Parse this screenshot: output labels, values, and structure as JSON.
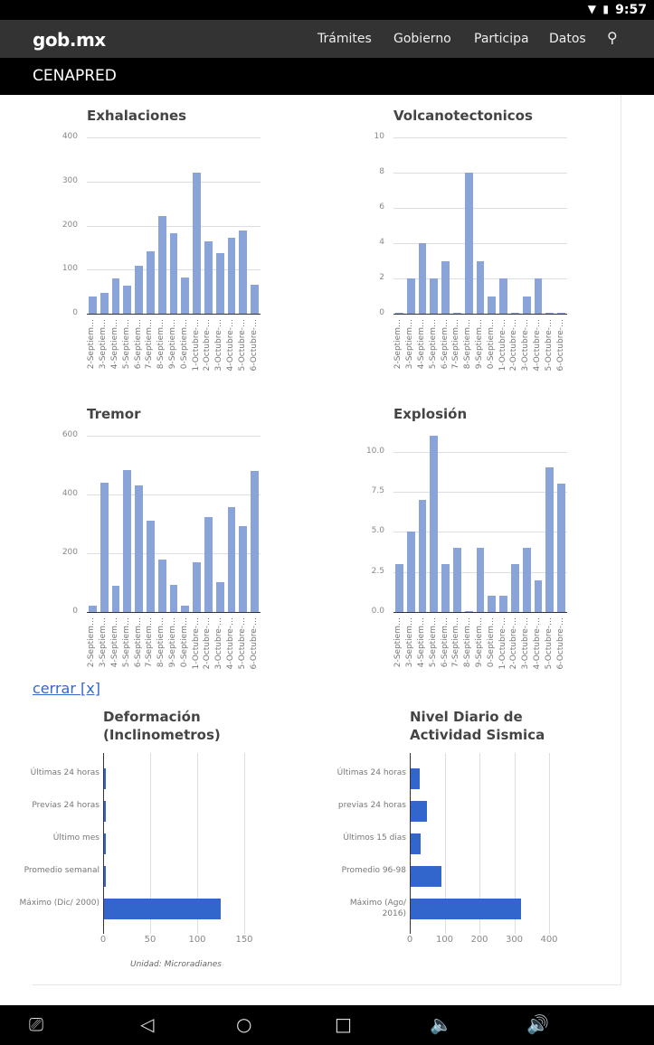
{
  "status_bar": {
    "time": "9:57"
  },
  "header": {
    "logo": "gob.mx",
    "nav": [
      "Trámites",
      "Gobierno",
      "Participa",
      "Datos"
    ],
    "site": "CENAPRED"
  },
  "close_link": "cerrar [x]",
  "colors": {
    "bar": "#8aa3d8",
    "hbar": "#3366cc"
  },
  "chart_data": [
    {
      "type": "bar",
      "title": "Exhalaciones",
      "ylim": [
        0,
        400
      ],
      "yticks": [
        "0",
        "100",
        "200",
        "300",
        "400"
      ],
      "categories": [
        "2-Septiem…",
        "3-Septiem…",
        "4-Septiem…",
        "5-Septiem…",
        "6-Septiem…",
        "7-Septiem…",
        "8-Septiem…",
        "9-Septiem…",
        "0-Septiem…",
        "1-Octubre-…",
        "2-Octubre-…",
        "3-Octubre-…",
        "4-Octubre-…",
        "5-Octubre-…",
        "6-Octubre-…"
      ],
      "values": [
        38,
        48,
        81,
        63,
        108,
        141,
        221,
        182,
        83,
        321,
        164,
        137,
        173,
        188,
        66
      ]
    },
    {
      "type": "bar",
      "title": "Volcanotectonicos",
      "ylim": [
        0,
        10
      ],
      "yticks": [
        "0",
        "2",
        "4",
        "6",
        "8",
        "10"
      ],
      "categories": [
        "2-Septiem…",
        "3-Septiem…",
        "4-Septiem…",
        "5-Septiem…",
        "6-Septiem…",
        "7-Septiem…",
        "8-Septiem…",
        "9-Septiem…",
        "0-Septiem…",
        "1-Octubre-…",
        "2-Octubre-…",
        "3-Octubre-…",
        "4-Octubre-…",
        "5-Octubre-…",
        "6-Octubre-…"
      ],
      "values": [
        0,
        2,
        4,
        2,
        3,
        0,
        8,
        3,
        1,
        2,
        0,
        1,
        2,
        0,
        0
      ]
    },
    {
      "type": "bar",
      "title": "Tremor",
      "ylim": [
        0,
        600
      ],
      "yticks": [
        "0",
        "200",
        "400",
        "600"
      ],
      "categories": [
        "2-Septiem…",
        "3-Septiem…",
        "4-Septiem…",
        "5-Septiem…",
        "6-Septiem…",
        "7-Septiem…",
        "8-Septiem…",
        "9-Septiem…",
        "0-Septiem…",
        "1-Octubre-…",
        "2-Octubre-…",
        "3-Octubre-…",
        "4-Octubre-…",
        "5-Octubre-…",
        "6-Octubre-…"
      ],
      "values": [
        22,
        440,
        88,
        482,
        430,
        310,
        178,
        92,
        22,
        170,
        322,
        102,
        358,
        292,
        480
      ]
    },
    {
      "type": "bar",
      "title": "Explosión",
      "ylim": [
        0,
        11
      ],
      "yticks": [
        "0.0",
        "2.5",
        "5.0",
        "7.5",
        "10.0"
      ],
      "categories": [
        "2-Septiem…",
        "3-Septiem…",
        "4-Septiem…",
        "5-Septiem…",
        "6-Septiem…",
        "7-Septiem…",
        "8-Septiem…",
        "9-Septiem…",
        "0-Septiem…",
        "1-Octubre-…",
        "2-Octubre-…",
        "3-Octubre-…",
        "4-Octubre-…",
        "5-Octubre-…",
        "6-Octubre-…"
      ],
      "values": [
        3,
        5,
        7,
        11,
        3,
        4,
        0,
        4,
        1,
        1,
        3,
        4,
        2,
        9,
        8
      ]
    },
    {
      "type": "bar",
      "orientation": "horizontal",
      "title": "Deformación (Inclinometros)",
      "xlim": [
        0,
        150
      ],
      "xticks": [
        "0",
        "50",
        "100",
        "150"
      ],
      "categories": [
        "Últimas 24 horas",
        "Previas 24 horas",
        "Último mes",
        "Promedio semanal",
        "Máximo (Dic/ 2000)"
      ],
      "values": [
        2,
        2,
        1,
        1,
        124
      ],
      "note": "Unidad: Microradianes"
    },
    {
      "type": "bar",
      "orientation": "horizontal",
      "title": "Nivel Diario de Actividad Sismica",
      "xlim": [
        0,
        400
      ],
      "xticks": [
        "0",
        "100",
        "200",
        "300",
        "400"
      ],
      "categories": [
        "Últimas 24 horas",
        "previas 24 horas",
        "Últimos 15 dias",
        "Promedio 96-98",
        "Máximo (Ago/ 2016)"
      ],
      "values": [
        27,
        48,
        29,
        88,
        316
      ]
    }
  ]
}
